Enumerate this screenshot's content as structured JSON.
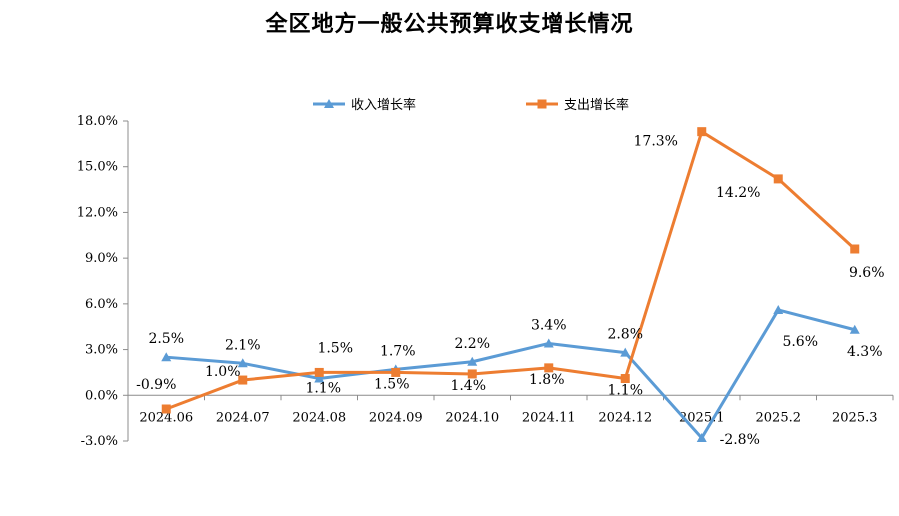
{
  "chart_data": {
    "type": "line",
    "title": "全区地方一般公共预算收支增长情况",
    "categories": [
      "2024.06",
      "2024.07",
      "2024.08",
      "2024.09",
      "2024.10",
      "2024.11",
      "2024.12",
      "2025.1",
      "2025.2",
      "2025.3"
    ],
    "series": [
      {
        "name": "收入增长率",
        "color": "#5B9BD5",
        "marker": "triangle",
        "values": [
          2.5,
          2.1,
          1.1,
          1.7,
          2.2,
          3.4,
          2.8,
          -2.8,
          5.6,
          4.3
        ],
        "labels": [
          "2.5%",
          "2.1%",
          "1.1%",
          "1.7%",
          "2.2%",
          "3.4%",
          "2.8%",
          "-2.8%",
          "5.6%",
          "4.3%"
        ]
      },
      {
        "name": "支出增长率",
        "color": "#ED7D31",
        "marker": "square",
        "values": [
          -0.9,
          1.0,
          1.5,
          1.5,
          1.4,
          1.8,
          1.1,
          17.3,
          14.2,
          9.6
        ],
        "labels": [
          "-0.9%",
          "1.0%",
          "1.5%",
          "1.5%",
          "1.4%",
          "1.8%",
          "1.1%",
          "17.3%",
          "14.2%",
          "9.6%"
        ]
      }
    ],
    "ylim": [
      -3.0,
      18.0
    ],
    "yticks": [
      "18.0%",
      "15.0%",
      "12.0%",
      "9.0%",
      "6.0%",
      "3.0%",
      "0.0%",
      "-3.0%"
    ],
    "ytick_values": [
      18,
      15,
      12,
      9,
      6,
      3,
      0,
      -3
    ],
    "grid": false,
    "legend_position": "top"
  }
}
